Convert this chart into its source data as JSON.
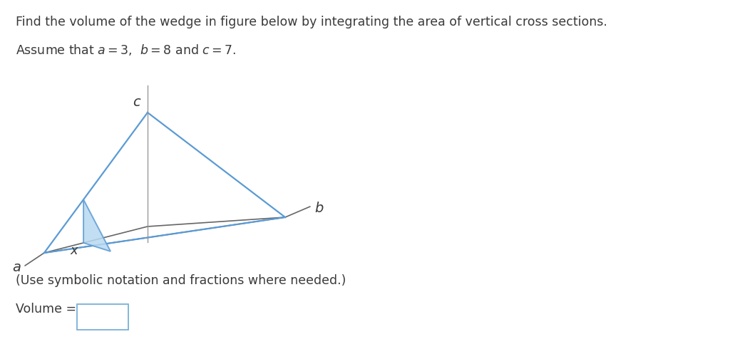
{
  "title_line1": "Find the volume of the wedge in figure below by integrating the area of vertical cross sections.",
  "title_line2_math": "Assume that $a = 3$,  $b = 8$ and $c = 7$.",
  "background_color": "#ffffff",
  "text_color": "#3a3a3a",
  "label_a": "a",
  "label_b": "b",
  "label_c": "c",
  "label_x": "x",
  "bottom_text": "(Use symbolic notation and fractions where needed.)",
  "volume_label": "Volume = ",
  "blue_color": "#5b9bd5",
  "blue_fill": "#b8d9f0",
  "dark_line_color": "#666666",
  "vert_line_color": "#999999",
  "title_fontsize": 12.5,
  "body_fontsize": 12.5,
  "box_edge_color": "#7ab0d8"
}
